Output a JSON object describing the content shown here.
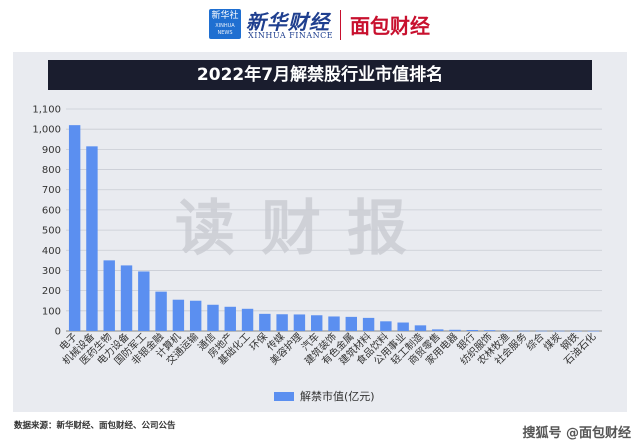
{
  "header": {
    "logo_box_text": "新华社",
    "logo_box_sub": "XINHUA NEWS",
    "brand_cn": "新华财经",
    "brand_en": "XINHUA FINANCE",
    "brand2": "面包财经"
  },
  "watermark": "读财报",
  "source": "数据来源：新华财经、面包财经、公司公告",
  "bottom_right": "搜狐号 @面包财经",
  "colors": {
    "bar": "#5b8ff0",
    "title_bg": "#1a1d2e",
    "card_bg": "#e9ebf0"
  },
  "chart_data": {
    "type": "bar",
    "title": "2022年7月解禁股行业市值排名",
    "legend": "解禁市值(亿元)",
    "legend_position": "bottom",
    "grid": true,
    "ylim": [
      0,
      1100
    ],
    "yticks": [
      "0",
      "100",
      "200",
      "300",
      "400",
      "500",
      "600",
      "700",
      "800",
      "900",
      "1,000",
      "1,100"
    ],
    "categories": [
      "电子",
      "机械设备",
      "医药生物",
      "电力设备",
      "国防军工",
      "非银金融",
      "计算机",
      "交通运输",
      "通信",
      "房地产",
      "基础化工",
      "环保",
      "传媒",
      "美容护理",
      "汽车",
      "建筑装饰",
      "有色金属",
      "建筑材料",
      "食品饮料",
      "公用事业",
      "轻工制造",
      "商贸零售",
      "家用电器",
      "银行",
      "纺织服饰",
      "农林牧渔",
      "社会服务",
      "综合",
      "煤炭",
      "钢铁",
      "石油石化"
    ],
    "series": [
      {
        "name": "解禁市值(亿元)",
        "values": [
          1020,
          915,
          350,
          325,
          295,
          195,
          155,
          150,
          130,
          120,
          110,
          85,
          83,
          82,
          78,
          72,
          70,
          65,
          48,
          42,
          28,
          8,
          6,
          5,
          4,
          2,
          1,
          1,
          1,
          0.5,
          0.5
        ]
      }
    ]
  }
}
